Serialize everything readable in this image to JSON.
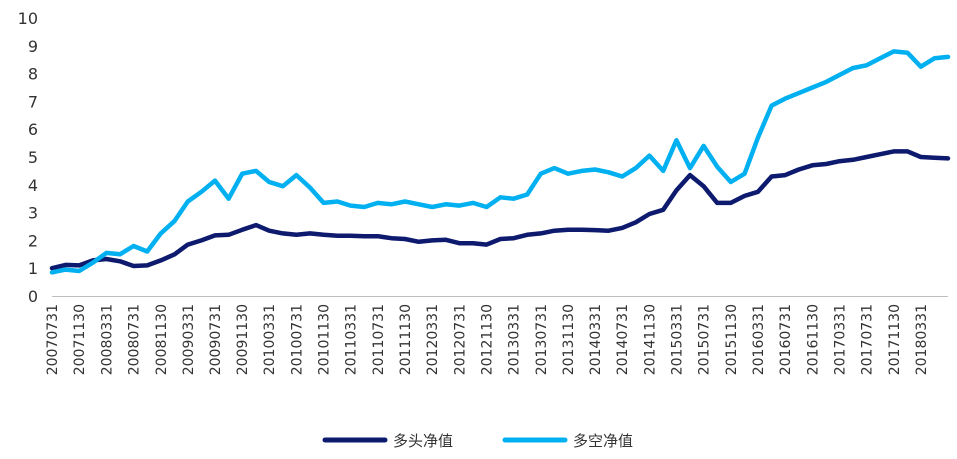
{
  "chart_data": {
    "type": "line",
    "ylim": [
      0,
      10
    ],
    "yticks": [
      "0",
      "1",
      "2",
      "3",
      "4",
      "5",
      "6",
      "7",
      "8",
      "9",
      "10"
    ],
    "x_tick_labels": [
      "20070731",
      "20071130",
      "20080331",
      "20080731",
      "20081130",
      "20090331",
      "20090731",
      "20091130",
      "20100331",
      "20100731",
      "20101130",
      "20110331",
      "20110731",
      "20111130",
      "20120331",
      "20120731",
      "20121130",
      "20130331",
      "20130731",
      "20131130",
      "20140331",
      "20140731",
      "20141130",
      "20150331",
      "20150731",
      "20151130",
      "20160331",
      "20160731",
      "20161130",
      "20170331",
      "20170731",
      "20171130",
      "20180331"
    ],
    "grid": false,
    "legend_position": "bottom",
    "series": [
      {
        "name": "多头净值",
        "color": "#0d1a6e",
        "points": [
          [
            "2007-07-31",
            1.0
          ],
          [
            "2007-09-30",
            1.12
          ],
          [
            "2007-11-30",
            1.1
          ],
          [
            "2008-01-31",
            1.28
          ],
          [
            "2008-03-31",
            1.33
          ],
          [
            "2008-05-31",
            1.25
          ],
          [
            "2008-07-31",
            1.08
          ],
          [
            "2008-09-30",
            1.1
          ],
          [
            "2008-11-30",
            1.28
          ],
          [
            "2009-01-31",
            1.5
          ],
          [
            "2009-03-31",
            1.85
          ],
          [
            "2009-05-31",
            2.0
          ],
          [
            "2009-07-31",
            2.18
          ],
          [
            "2009-09-30",
            2.2
          ],
          [
            "2009-11-30",
            2.38
          ],
          [
            "2010-01-31",
            2.55
          ],
          [
            "2010-03-31",
            2.35
          ],
          [
            "2010-05-31",
            2.25
          ],
          [
            "2010-07-31",
            2.2
          ],
          [
            "2010-09-30",
            2.25
          ],
          [
            "2010-11-30",
            2.2
          ],
          [
            "2011-01-31",
            2.17
          ],
          [
            "2011-03-31",
            2.17
          ],
          [
            "2011-05-31",
            2.15
          ],
          [
            "2011-07-31",
            2.15
          ],
          [
            "2011-09-30",
            2.08
          ],
          [
            "2011-11-30",
            2.05
          ],
          [
            "2012-01-31",
            1.95
          ],
          [
            "2012-03-31",
            2.0
          ],
          [
            "2012-05-31",
            2.02
          ],
          [
            "2012-07-31",
            1.9
          ],
          [
            "2012-09-30",
            1.9
          ],
          [
            "2012-11-30",
            1.85
          ],
          [
            "2013-01-31",
            2.05
          ],
          [
            "2013-03-31",
            2.08
          ],
          [
            "2013-05-31",
            2.2
          ],
          [
            "2013-07-31",
            2.25
          ],
          [
            "2013-09-30",
            2.35
          ],
          [
            "2013-11-30",
            2.38
          ],
          [
            "2014-01-31",
            2.38
          ],
          [
            "2014-03-31",
            2.37
          ],
          [
            "2014-05-31",
            2.35
          ],
          [
            "2014-07-31",
            2.45
          ],
          [
            "2014-09-30",
            2.65
          ],
          [
            "2014-11-30",
            2.95
          ],
          [
            "2015-01-31",
            3.1
          ],
          [
            "2015-03-31",
            3.8
          ],
          [
            "2015-05-31",
            4.35
          ],
          [
            "2015-07-31",
            3.95
          ],
          [
            "2015-09-30",
            3.35
          ],
          [
            "2015-11-30",
            3.35
          ],
          [
            "2016-01-31",
            3.6
          ],
          [
            "2016-03-31",
            3.75
          ],
          [
            "2016-05-31",
            4.3
          ],
          [
            "2016-07-31",
            4.35
          ],
          [
            "2016-09-30",
            4.55
          ],
          [
            "2016-11-30",
            4.7
          ],
          [
            "2017-01-31",
            4.75
          ],
          [
            "2017-03-31",
            4.85
          ],
          [
            "2017-05-31",
            4.9
          ],
          [
            "2017-07-31",
            5.0
          ],
          [
            "2017-09-30",
            5.1
          ],
          [
            "2017-11-30",
            5.2
          ],
          [
            "2018-01-31",
            5.2
          ],
          [
            "2018-03-31",
            5.0
          ],
          [
            "2018-05-31",
            4.97
          ],
          [
            "2018-07-31",
            4.95
          ]
        ]
      },
      {
        "name": "多空净值",
        "color": "#00b0f0",
        "points": [
          [
            "2007-07-31",
            0.85
          ],
          [
            "2007-09-30",
            0.95
          ],
          [
            "2007-11-30",
            0.9
          ],
          [
            "2008-01-31",
            1.2
          ],
          [
            "2008-03-31",
            1.55
          ],
          [
            "2008-05-31",
            1.5
          ],
          [
            "2008-07-31",
            1.8
          ],
          [
            "2008-09-30",
            1.6
          ],
          [
            "2008-11-30",
            2.25
          ],
          [
            "2009-01-31",
            2.7
          ],
          [
            "2009-03-31",
            3.4
          ],
          [
            "2009-05-31",
            3.75
          ],
          [
            "2009-07-31",
            4.15
          ],
          [
            "2009-09-30",
            3.5
          ],
          [
            "2009-11-30",
            4.4
          ],
          [
            "2010-01-31",
            4.5
          ],
          [
            "2010-03-31",
            4.1
          ],
          [
            "2010-05-31",
            3.95
          ],
          [
            "2010-07-31",
            4.35
          ],
          [
            "2010-09-30",
            3.9
          ],
          [
            "2010-11-30",
            3.35
          ],
          [
            "2011-01-31",
            3.4
          ],
          [
            "2011-03-31",
            3.25
          ],
          [
            "2011-05-31",
            3.2
          ],
          [
            "2011-07-31",
            3.35
          ],
          [
            "2011-09-30",
            3.3
          ],
          [
            "2011-11-30",
            3.4
          ],
          [
            "2012-01-31",
            3.3
          ],
          [
            "2012-03-31",
            3.2
          ],
          [
            "2012-05-31",
            3.3
          ],
          [
            "2012-07-31",
            3.25
          ],
          [
            "2012-09-30",
            3.35
          ],
          [
            "2012-11-30",
            3.2
          ],
          [
            "2013-01-31",
            3.55
          ],
          [
            "2013-03-31",
            3.5
          ],
          [
            "2013-05-31",
            3.65
          ],
          [
            "2013-07-31",
            4.4
          ],
          [
            "2013-09-30",
            4.6
          ],
          [
            "2013-11-30",
            4.4
          ],
          [
            "2014-01-31",
            4.5
          ],
          [
            "2014-03-31",
            4.55
          ],
          [
            "2014-05-31",
            4.45
          ],
          [
            "2014-07-31",
            4.3
          ],
          [
            "2014-09-30",
            4.6
          ],
          [
            "2014-11-30",
            5.05
          ],
          [
            "2015-01-31",
            4.5
          ],
          [
            "2015-03-31",
            5.6
          ],
          [
            "2015-05-31",
            4.6
          ],
          [
            "2015-07-31",
            5.4
          ],
          [
            "2015-09-30",
            4.65
          ],
          [
            "2015-11-30",
            4.1
          ],
          [
            "2016-01-31",
            4.4
          ],
          [
            "2016-03-31",
            5.7
          ],
          [
            "2016-05-31",
            6.85
          ],
          [
            "2016-07-31",
            7.1
          ],
          [
            "2016-09-30",
            7.3
          ],
          [
            "2016-11-30",
            7.5
          ],
          [
            "2017-01-31",
            7.7
          ],
          [
            "2017-03-31",
            7.95
          ],
          [
            "2017-05-31",
            8.2
          ],
          [
            "2017-07-31",
            8.3
          ],
          [
            "2017-09-30",
            8.55
          ],
          [
            "2017-11-30",
            8.8
          ],
          [
            "2018-01-31",
            8.75
          ],
          [
            "2018-03-31",
            8.25
          ],
          [
            "2018-05-31",
            8.55
          ],
          [
            "2018-07-31",
            8.6
          ]
        ]
      }
    ]
  }
}
